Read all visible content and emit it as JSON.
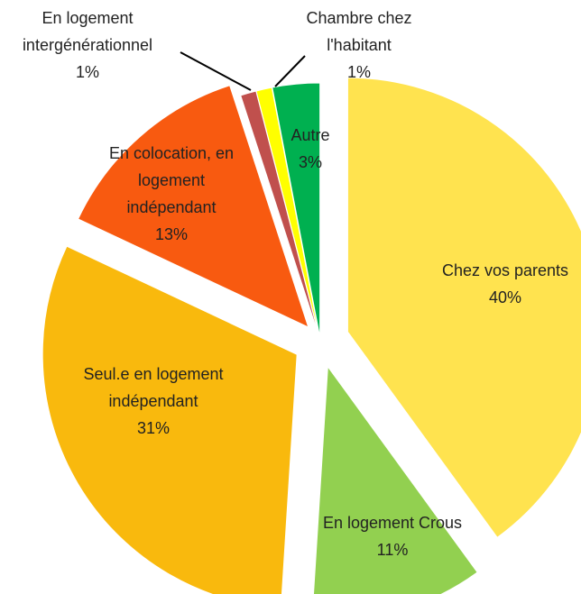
{
  "chart_data": {
    "type": "pie",
    "categories": [
      "Chez vos parents",
      "En logement Crous",
      "Seul.e en logement indépendant",
      "En colocation, en logement indépendant",
      "En logement intergénérationnel",
      "Chambre chez l'habitant",
      "Autre"
    ],
    "values": [
      40,
      11,
      31,
      13,
      1,
      1,
      3
    ],
    "value_labels": [
      "40%",
      "11%",
      "31%",
      "13%",
      "1%",
      "1%",
      "3%"
    ],
    "colors": [
      "#FFE34F",
      "#92D050",
      "#F9B90D",
      "#F85A10",
      "#C0504D",
      "#FFFF00",
      "#00B050"
    ]
  }
}
